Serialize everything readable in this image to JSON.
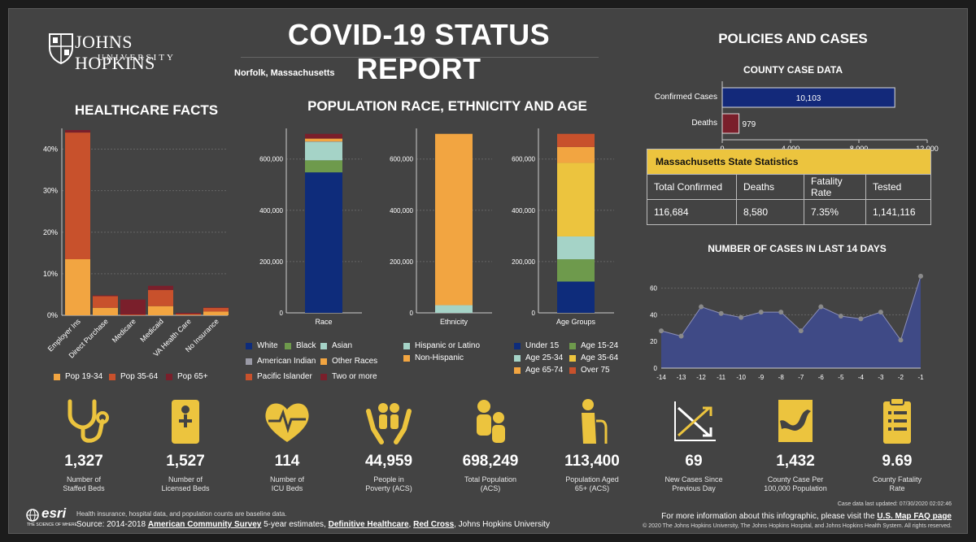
{
  "header": {
    "title": "COVID-19 STATUS REPORT",
    "location": "Norfolk, Massachusetts",
    "logo": {
      "line1": "JOHNS HOPKINS",
      "line2": "UNIVERSITY"
    }
  },
  "sections": {
    "healthcare": "HEALTHCARE FACTS",
    "population": "POPULATION RACE, ETHNICITY AND AGE",
    "policies": "POLICIES AND CASES",
    "county": "COUNTY CASE DATA",
    "cases14": "NUMBER OF CASES IN LAST 14 DAYS"
  },
  "colors": {
    "pop19_34": "#f2a541",
    "pop35_64": "#c8512c",
    "pop65": "#7a1f2b",
    "white": "#0e2c7b",
    "black": "#6e9a4c",
    "asian": "#a5d3c7",
    "american_indian": "#9a9aa6",
    "other_races": "#f2a541",
    "pacific": "#c8512c",
    "two_more": "#7a1f2b",
    "hispanic": "#a5d3c7",
    "non_hispanic": "#f2a541",
    "under15": "#0e2c7b",
    "age15_24": "#6e9a4c",
    "age25_34": "#a5d3c7",
    "age35_64": "#ecc43e",
    "age65_74": "#f2a541",
    "over75": "#c8512c",
    "confirmed": "#13297a",
    "deaths": "#7a1f2b",
    "accent": "#ecc43e"
  },
  "chart_data": [
    {
      "id": "healthcare",
      "type": "bar",
      "stacked": true,
      "categories": [
        "Employer Ins",
        "Direct Purchase",
        "Medicare",
        "Medicaid",
        "VA Health Care",
        "No Insurance"
      ],
      "series": [
        {
          "name": "Pop 19-34",
          "values": [
            13.5,
            1.8,
            0,
            2.2,
            0.1,
            0.9
          ]
        },
        {
          "name": "Pop 35-64",
          "values": [
            30.5,
            2.8,
            0.2,
            3.9,
            0.2,
            0.9
          ]
        },
        {
          "name": "Pop 65+",
          "values": [
            0.6,
            0.2,
            3.6,
            1.0,
            0.3,
            0.1
          ]
        }
      ],
      "yticks": [
        "0%",
        "10%",
        "20%",
        "30%",
        "40%"
      ],
      "ylim": [
        0,
        45
      ]
    },
    {
      "id": "race",
      "type": "bar",
      "stacked": true,
      "categories": [
        "Race"
      ],
      "series": [
        {
          "name": "White",
          "values": [
            548000
          ]
        },
        {
          "name": "Black",
          "values": [
            47000
          ]
        },
        {
          "name": "Asian",
          "values": [
            72000
          ]
        },
        {
          "name": "American Indian",
          "values": [
            1500
          ]
        },
        {
          "name": "Other Races",
          "values": [
            11000
          ]
        },
        {
          "name": "Pacific Islander",
          "values": [
            500
          ]
        },
        {
          "name": "Two or more",
          "values": [
            18249
          ]
        }
      ],
      "yticks": [
        "0",
        "200,000",
        "400,000",
        "600,000"
      ],
      "ylim": [
        0,
        710000
      ]
    },
    {
      "id": "ethnicity",
      "type": "bar",
      "stacked": true,
      "categories": [
        "Ethnicity"
      ],
      "series": [
        {
          "name": "Hispanic or Latino",
          "values": [
            30000
          ]
        },
        {
          "name": "Non-Hispanic",
          "values": [
            668249
          ]
        }
      ],
      "yticks": [
        "0",
        "200,000",
        "400,000",
        "600,000"
      ],
      "ylim": [
        0,
        710000
      ]
    },
    {
      "id": "age",
      "type": "bar",
      "stacked": true,
      "categories": [
        "Age Groups"
      ],
      "series": [
        {
          "name": "Under 15",
          "values": [
            122000
          ]
        },
        {
          "name": "Age 15-24",
          "values": [
            87000
          ]
        },
        {
          "name": "Age 25-34",
          "values": [
            89000
          ]
        },
        {
          "name": "Age 35-64",
          "values": [
            287000
          ]
        },
        {
          "name": "Age 65-74",
          "values": [
            62000
          ]
        },
        {
          "name": "Over 75",
          "values": [
            51249
          ]
        }
      ],
      "yticks": [
        "0",
        "200,000",
        "400,000",
        "600,000"
      ],
      "ylim": [
        0,
        710000
      ]
    },
    {
      "id": "county",
      "type": "bar",
      "orientation": "horizontal",
      "categories": [
        "Confirmed Cases",
        "Deaths"
      ],
      "values": [
        10103,
        979
      ],
      "labels": [
        "10,103",
        "979"
      ],
      "xticks": [
        "0",
        "4,000",
        "8,000",
        "12,000"
      ],
      "xlim": [
        0,
        12000
      ]
    },
    {
      "id": "cases14",
      "type": "area",
      "x": [
        "-14",
        "-13",
        "-12",
        "-11",
        "-10",
        "-9",
        "-8",
        "-7",
        "-6",
        "-5",
        "-4",
        "-3",
        "-2",
        "-1"
      ],
      "values": [
        28,
        24,
        46,
        41,
        38,
        42,
        42,
        28,
        46,
        39,
        37,
        42,
        21,
        69
      ],
      "yticks": [
        "0",
        "20",
        "40",
        "60"
      ],
      "ylim": [
        0,
        75
      ]
    }
  ],
  "legends": {
    "healthcare": [
      "Pop 19-34",
      "Pop 35-64",
      "Pop 65+"
    ],
    "race": [
      "White",
      "Black",
      "Asian",
      "American Indian",
      "Other Races",
      "Pacific Islander",
      "Two or more"
    ],
    "ethnicity": [
      "Hispanic or Latino",
      "Non-Hispanic"
    ],
    "age": [
      "Under 15",
      "Age 15-24",
      "Age 25-34",
      "Age 35-64",
      "Age 65-74",
      "Over 75"
    ]
  },
  "state": {
    "title": "Massachusetts State Statistics",
    "headers": [
      "Total Confirmed",
      "Deaths",
      "Fatality Rate",
      "Tested"
    ],
    "values": [
      "116,684",
      "8,580",
      "7.35%",
      "1,141,116"
    ]
  },
  "stats": [
    {
      "icon": "stethoscope-icon",
      "value": "1,327",
      "label1": "Number of",
      "label2": "Staffed Beds"
    },
    {
      "icon": "medical-kit-icon",
      "value": "1,527",
      "label1": "Number of",
      "label2": "Licensed Beds"
    },
    {
      "icon": "heartbeat-icon",
      "value": "114",
      "label1": "Number of",
      "label2": "ICU Beds"
    },
    {
      "icon": "hands-people-icon",
      "value": "44,959",
      "label1": "People in",
      "label2": "Poverty (ACS)"
    },
    {
      "icon": "family-icon",
      "value": "698,249",
      "label1": "Total Population",
      "label2": "(ACS)"
    },
    {
      "icon": "elderly-icon",
      "value": "113,400",
      "label1": "Population Aged",
      "label2": "65+ (ACS)"
    },
    {
      "icon": "trend-cross-icon",
      "value": "69",
      "label1": "New Cases Since",
      "label2": "Previous Day"
    },
    {
      "icon": "county-map-icon",
      "value": "1,432",
      "label1": "County Case Per",
      "label2": "100,000 Population"
    },
    {
      "icon": "clipboard-icon",
      "value": "9.69",
      "label1": "County Fatality",
      "label2": "Rate"
    }
  ],
  "footer": {
    "esri": "esri",
    "esri_tag": "THE SCIENCE OF WHERE",
    "note": "Health insurance, hospital data, and population counts are baseline data.",
    "source_prefix": "Source: 2014-2018 ",
    "source_acs": "American Community Survey",
    "source_mid": " 5-year estimates, ",
    "source_dh": "Definitive Healthcare",
    "source_comma": ", ",
    "source_rc": "Red Cross",
    "source_end": ", Johns Hopkins University",
    "updated": "Case data last updated: 07/30/2020 02:02:46",
    "more_info": "For more information about this infographic, please visit the ",
    "faq_link": "U.S. Map FAQ page",
    "copyright": "© 2020 The Johns Hopkins University, The Johns Hopkins Hospital, and Johns Hopkins Health System. All rights reserved."
  }
}
